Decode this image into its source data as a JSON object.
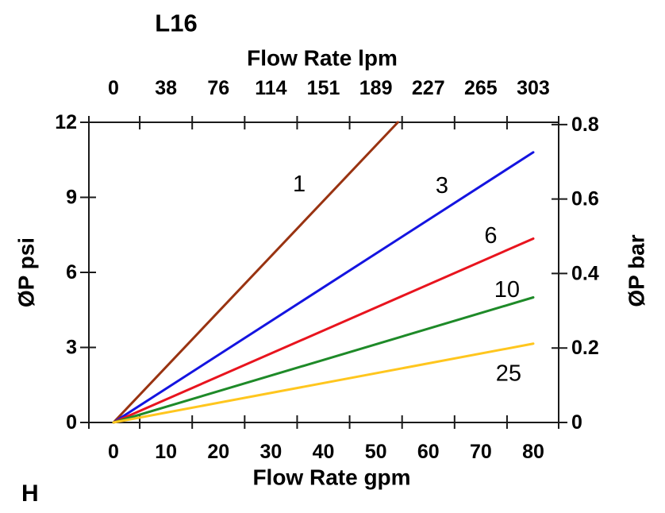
{
  "page": {
    "background": "#ffffff",
    "footer_mark": "H"
  },
  "chart_data": {
    "type": "line",
    "title": "L16",
    "grid": false,
    "legend": "inline-curve-labels",
    "axis_color": "#1a1a1a",
    "text_color": "#000000",
    "x_axis_bottom": {
      "label": "Flow Rate gpm",
      "tick_values": [
        0,
        10,
        20,
        30,
        40,
        50,
        60,
        70,
        80
      ]
    },
    "x_axis_top": {
      "label": "Flow Rate lpm",
      "tick_values": [
        0,
        38,
        76,
        114,
        151,
        189,
        227,
        265,
        303
      ]
    },
    "y_axis_left": {
      "label": "ØP psi",
      "tick_values": [
        0,
        3,
        6,
        9,
        12
      ],
      "range": [
        0,
        12
      ]
    },
    "y_axis_right": {
      "label": "ØP bar",
      "tick_values": [
        0,
        0.2,
        0.4,
        0.6,
        0.8
      ],
      "range": [
        0,
        0.806
      ]
    },
    "x_range_gpm": [
      -4.69,
      84.84
    ],
    "x_tick_marks_gpm": [
      -4.69,
      5,
      15,
      25,
      35,
      45,
      55,
      65,
      75,
      84.84
    ],
    "series": [
      {
        "label": "1",
        "color": "#993311",
        "points": [
          [
            0,
            0
          ],
          [
            54.2,
            12
          ]
        ],
        "label_at": [
          35.4,
          9.52
        ]
      },
      {
        "label": "3",
        "color": "#1414e0",
        "points": [
          [
            0,
            0
          ],
          [
            80,
            10.8
          ]
        ],
        "label_at": [
          62.6,
          9.46
        ]
      },
      {
        "label": "6",
        "color": "#e8141e",
        "points": [
          [
            0,
            0
          ],
          [
            80,
            7.35
          ]
        ],
        "label_at": [
          71.9,
          7.46
        ]
      },
      {
        "label": "10",
        "color": "#1e8a28",
        "points": [
          [
            0,
            0
          ],
          [
            80,
            5.0
          ]
        ],
        "label_at": [
          75.0,
          5.3
        ]
      },
      {
        "label": "25",
        "color": "#ffc61e",
        "points": [
          [
            0,
            0
          ],
          [
            80,
            3.15
          ]
        ],
        "label_at": [
          75.3,
          1.95
        ]
      }
    ]
  }
}
